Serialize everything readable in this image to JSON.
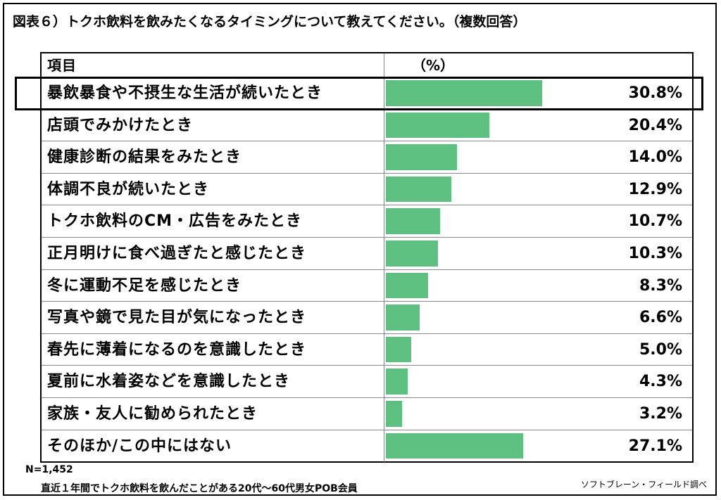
{
  "title": "図表６）トクホ飲料を飲みたくなるタイミングについて教えてください。（複数回答）",
  "header": {
    "item": "項目",
    "pct": "（%）"
  },
  "chart_data": {
    "type": "bar",
    "orientation": "horizontal",
    "categories": [
      "暴飲暴食や不摂生な生活が続いたとき",
      "店頭でみかけたとき",
      "健康診断の結果をみたとき",
      "体調不良が続いたとき",
      "トクホ飲料のCM・広告をみたとき",
      "正月明けに食べ過ぎたと感じたとき",
      "冬に運動不足を感じたとき",
      "写真や鏡で見た目が気になったとき",
      "春先に薄着になるのを意識したとき",
      "夏前に水着姿などを意識したとき",
      "家族・友人に勧められたとき",
      "そのほか/この中にはない"
    ],
    "values": [
      30.8,
      20.4,
      14.0,
      12.9,
      10.7,
      10.3,
      8.3,
      6.6,
      5.0,
      4.3,
      3.2,
      27.1
    ],
    "value_labels": [
      "30.8%",
      "20.4%",
      "14.0%",
      "12.9%",
      "10.7%",
      "10.3%",
      "8.3%",
      "6.6%",
      "5.0%",
      "4.3%",
      "3.2%",
      "27.1%"
    ],
    "xlim": [
      0,
      100
    ],
    "bar_color": "#5dbf80",
    "highlighted_category": "暴飲暴食や不摂生な生活が続いたとき"
  },
  "footer": {
    "n": "N=1,452",
    "description": "直近１年間でトクホ飲料を飲んだことがある20代〜60代男女POB会員",
    "source": "ソフトブレーン・フィールド調べ"
  }
}
